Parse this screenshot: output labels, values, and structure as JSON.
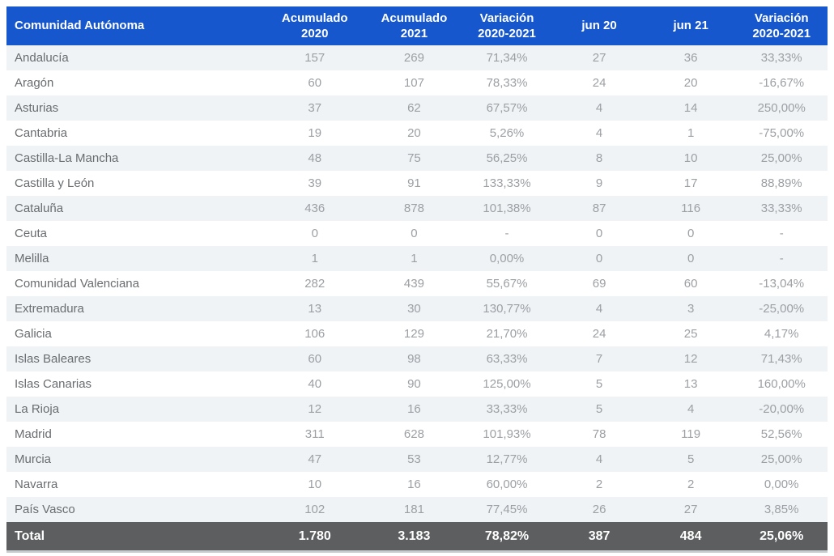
{
  "chart_data": {
    "type": "table",
    "columns": [
      {
        "line1": "Comunidad Autónoma",
        "line2": ""
      },
      {
        "line1": "Acumulado",
        "line2": "2020"
      },
      {
        "line1": "Acumulado",
        "line2": "2021"
      },
      {
        "line1": "Variación",
        "line2": "2020-2021"
      },
      {
        "line1": "jun 20",
        "line2": ""
      },
      {
        "line1": "jun 21",
        "line2": ""
      },
      {
        "line1": "Variación",
        "line2": "2020-2021"
      }
    ],
    "rows": [
      {
        "name": "Andalucía",
        "values": [
          "157",
          "269",
          "71,34%",
          "27",
          "36",
          "33,33%"
        ]
      },
      {
        "name": "Aragón",
        "values": [
          "60",
          "107",
          "78,33%",
          "24",
          "20",
          "-16,67%"
        ]
      },
      {
        "name": "Asturias",
        "values": [
          "37",
          "62",
          "67,57%",
          "4",
          "14",
          "250,00%"
        ]
      },
      {
        "name": "Cantabria",
        "values": [
          "19",
          "20",
          "5,26%",
          "4",
          "1",
          "-75,00%"
        ]
      },
      {
        "name": "Castilla-La Mancha",
        "values": [
          "48",
          "75",
          "56,25%",
          "8",
          "10",
          "25,00%"
        ]
      },
      {
        "name": "Castilla y León",
        "values": [
          "39",
          "91",
          "133,33%",
          "9",
          "17",
          "88,89%"
        ]
      },
      {
        "name": "Cataluña",
        "values": [
          "436",
          "878",
          "101,38%",
          "87",
          "116",
          "33,33%"
        ]
      },
      {
        "name": "Ceuta",
        "values": [
          "0",
          "0",
          "-",
          "0",
          "0",
          "-"
        ]
      },
      {
        "name": "Melilla",
        "values": [
          "1",
          "1",
          "0,00%",
          "0",
          "0",
          "-"
        ]
      },
      {
        "name": "Comunidad Valenciana",
        "values": [
          "282",
          "439",
          "55,67%",
          "69",
          "60",
          "-13,04%"
        ]
      },
      {
        "name": "Extremadura",
        "values": [
          "13",
          "30",
          "130,77%",
          "4",
          "3",
          "-25,00%"
        ]
      },
      {
        "name": "Galicia",
        "values": [
          "106",
          "129",
          "21,70%",
          "24",
          "25",
          "4,17%"
        ]
      },
      {
        "name": "Islas Baleares",
        "values": [
          "60",
          "98",
          "63,33%",
          "7",
          "12",
          "71,43%"
        ]
      },
      {
        "name": "Islas Canarias",
        "values": [
          "40",
          "90",
          "125,00%",
          "5",
          "13",
          "160,00%"
        ]
      },
      {
        "name": "La Rioja",
        "values": [
          "12",
          "16",
          "33,33%",
          "5",
          "4",
          "-20,00%"
        ]
      },
      {
        "name": "Madrid",
        "values": [
          "311",
          "628",
          "101,93%",
          "78",
          "119",
          "52,56%"
        ]
      },
      {
        "name": "Murcia",
        "values": [
          "47",
          "53",
          "12,77%",
          "4",
          "5",
          "25,00%"
        ]
      },
      {
        "name": "Navarra",
        "values": [
          "10",
          "16",
          "60,00%",
          "2",
          "2",
          "0,00%"
        ]
      },
      {
        "name": "País Vasco",
        "values": [
          "102",
          "181",
          "77,45%",
          "26",
          "27",
          "3,85%"
        ]
      }
    ],
    "total": {
      "label": "Total",
      "values": [
        "1.780",
        "3.183",
        "78,82%",
        "387",
        "484",
        "25,06%"
      ]
    }
  },
  "colors": {
    "header_bg": "#1757CE",
    "header_text": "#FFFFFF",
    "stripe_bg": "#EFF3F6",
    "total_bg": "#5D5E60",
    "total_text": "#FFFFFF",
    "name_text": "#696D70",
    "value_text": "#9CA0A4",
    "bottom_border": "#C6CBCE"
  }
}
